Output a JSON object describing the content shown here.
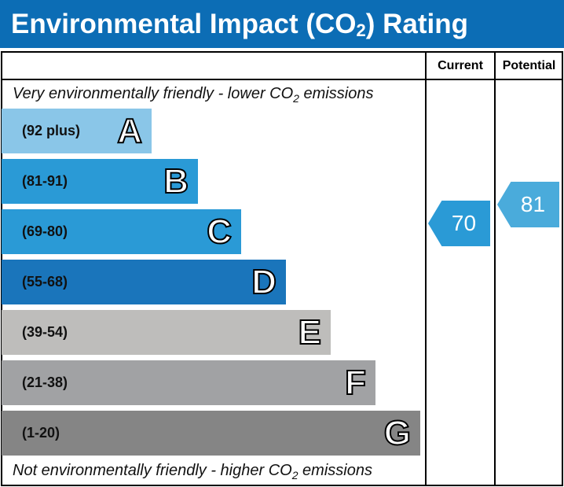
{
  "title": {
    "main": "Environmental Impact (CO",
    "sub": "2",
    "end": ") Rating"
  },
  "columns": {
    "current": "Current",
    "potential": "Potential"
  },
  "top_note": {
    "pre": "Very environmentally friendly - lower CO",
    "sub": "2",
    "post": " emissions"
  },
  "bottom_note": {
    "pre": "Not environmentally friendly - higher CO",
    "sub": "2",
    "post": " emissions"
  },
  "chart_data": {
    "type": "bar",
    "bands": [
      {
        "letter": "A",
        "range": "(92 plus)",
        "color": "#8ac6e8"
      },
      {
        "letter": "B",
        "range": "(81-91)",
        "color": "#2a9ad6"
      },
      {
        "letter": "C",
        "range": "(69-80)",
        "color": "#2a9ad6"
      },
      {
        "letter": "D",
        "range": "(55-68)",
        "color": "#1a75bb"
      },
      {
        "letter": "E",
        "range": "(39-54)",
        "color": "#bebdbb"
      },
      {
        "letter": "F",
        "range": "(21-38)",
        "color": "#a1a2a4"
      },
      {
        "letter": "G",
        "range": "(1-20)",
        "color": "#858585"
      }
    ],
    "current": {
      "value": "70",
      "band": "C",
      "color": "#2a9ad6"
    },
    "potential": {
      "value": "81",
      "band": "B",
      "color": "#4aabdb"
    }
  }
}
